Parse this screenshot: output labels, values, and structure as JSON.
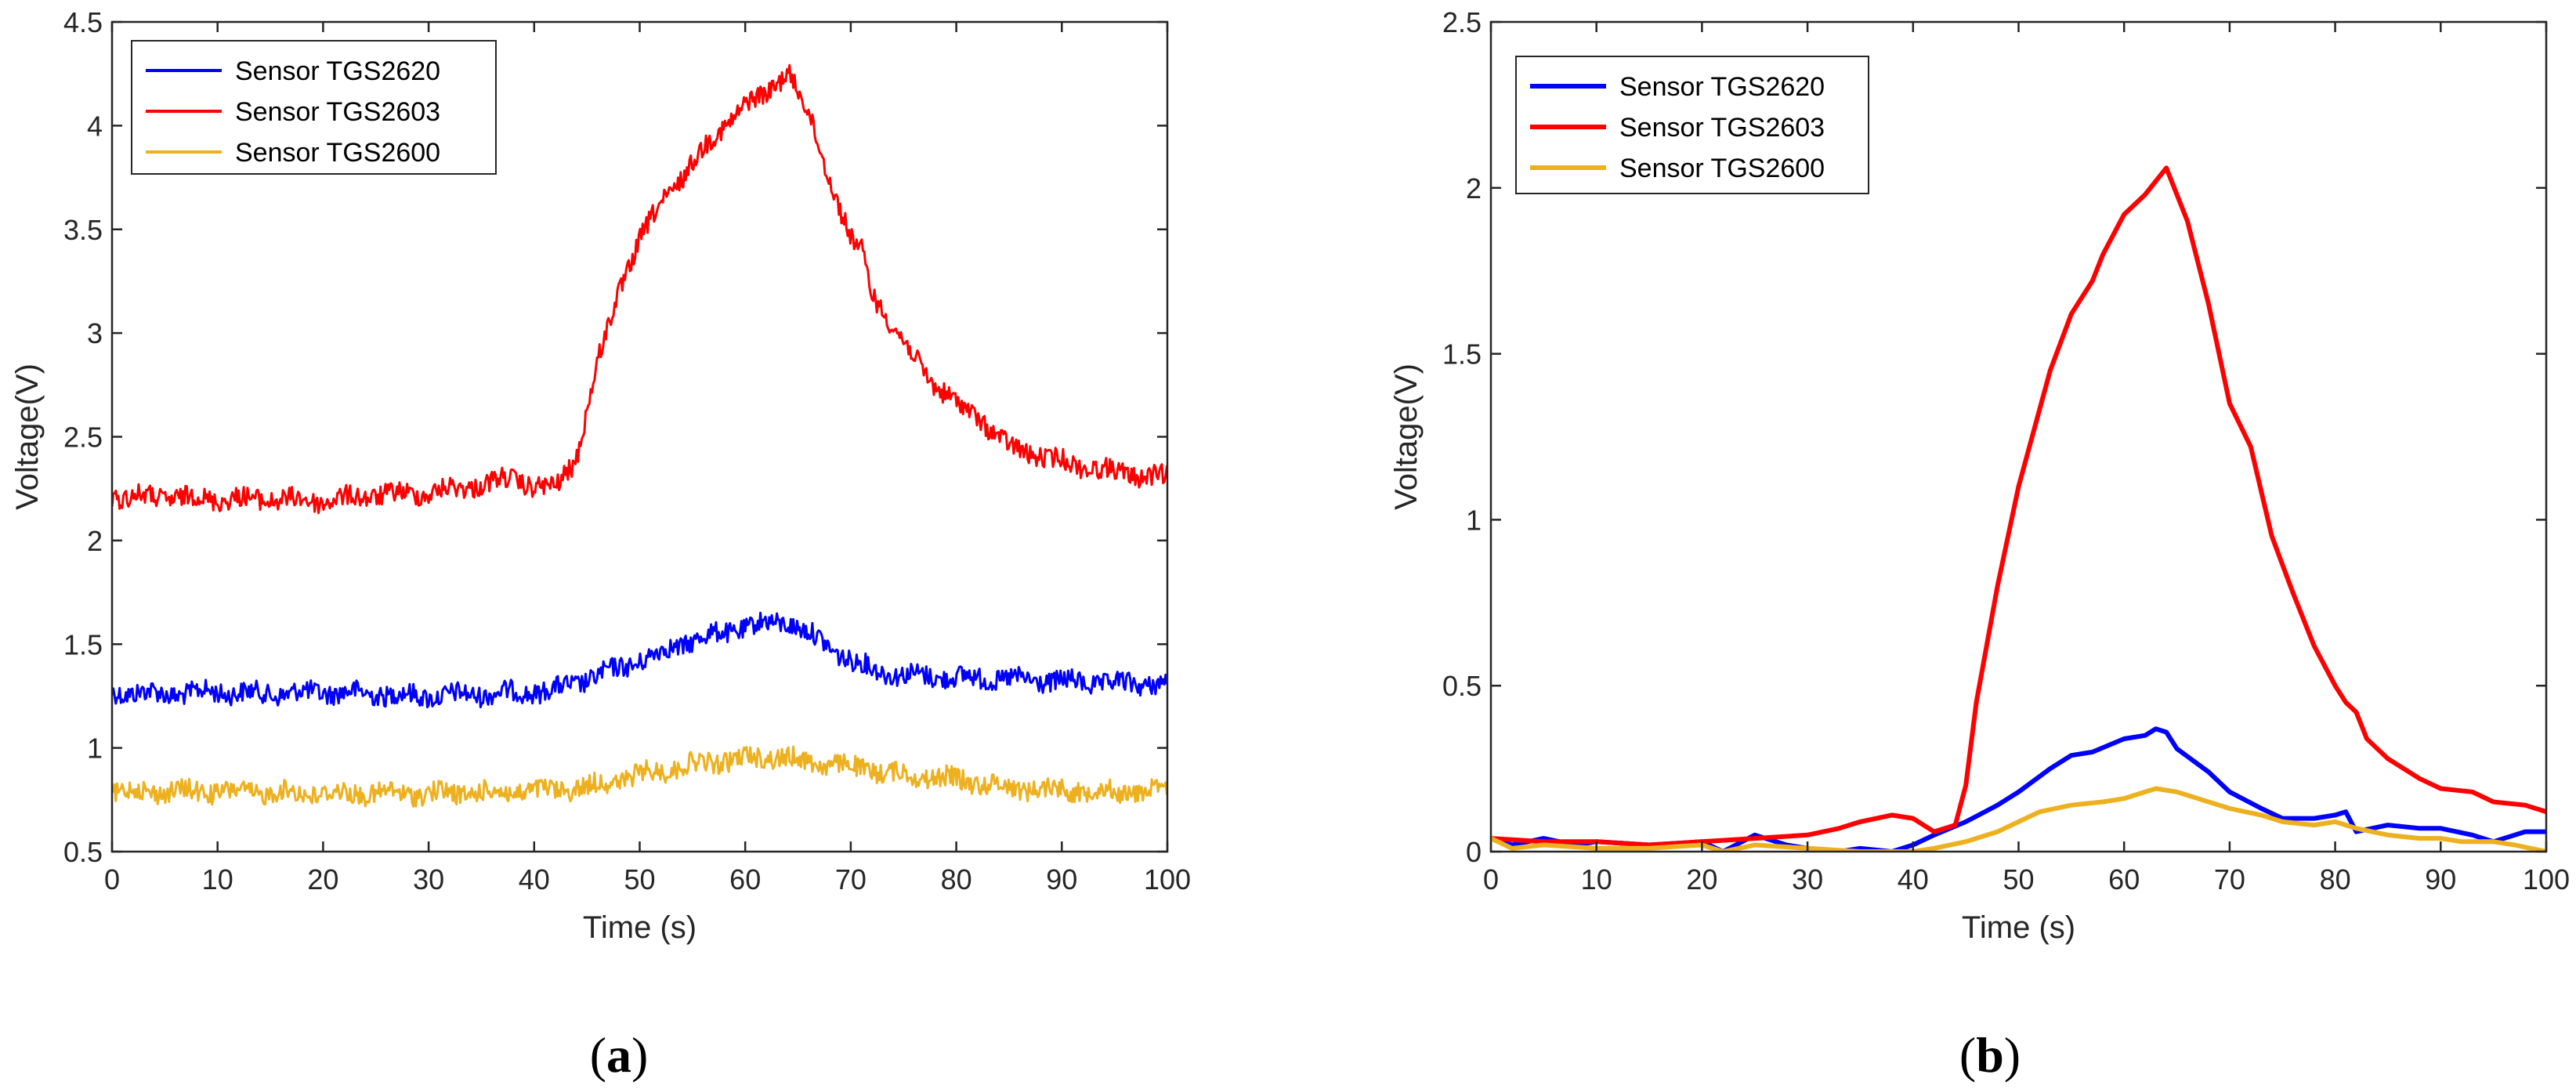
{
  "chart_data": [
    {
      "type": "line",
      "panel_label": "(a)",
      "panel_letter": "a",
      "xlabel": "Time (s)",
      "ylabel": "Voltage(V)",
      "xlim": [
        0,
        100
      ],
      "ylim": [
        0.5,
        4.5
      ],
      "xticks": [
        0,
        10,
        20,
        30,
        40,
        50,
        60,
        70,
        80,
        90,
        100
      ],
      "yticks": [
        0.5,
        1,
        1.5,
        2,
        2.5,
        3,
        3.5,
        4,
        4.5
      ],
      "ytick_labels": [
        "0.5",
        "1",
        "1.5",
        "2",
        "2.5",
        "3",
        "3.5",
        "4",
        "4.5"
      ],
      "legend_position": "top-left",
      "grid": false,
      "noisy": true,
      "series": [
        {
          "name": "Sensor TGS2620",
          "color": "#0000ff",
          "x": [
            0,
            5,
            10,
            15,
            20,
            25,
            30,
            35,
            40,
            42,
            45,
            50,
            55,
            60,
            62,
            64,
            67,
            70,
            72,
            75,
            80,
            85,
            90,
            95,
            100
          ],
          "y": [
            1.27,
            1.26,
            1.27,
            1.26,
            1.27,
            1.26,
            1.25,
            1.26,
            1.27,
            1.28,
            1.33,
            1.42,
            1.52,
            1.58,
            1.6,
            1.61,
            1.52,
            1.42,
            1.38,
            1.35,
            1.34,
            1.33,
            1.32,
            1.31,
            1.31
          ]
        },
        {
          "name": "Sensor TGS2603",
          "color": "#ff0000",
          "x": [
            0,
            5,
            10,
            15,
            20,
            25,
            30,
            35,
            38,
            40,
            42,
            44,
            46,
            48,
            50,
            52,
            55,
            58,
            60,
            62,
            64,
            66,
            68,
            70,
            71,
            72,
            75,
            78,
            80,
            82,
            85,
            90,
            95,
            100
          ],
          "y": [
            2.21,
            2.21,
            2.2,
            2.2,
            2.19,
            2.22,
            2.23,
            2.27,
            2.3,
            2.26,
            2.25,
            2.4,
            2.85,
            3.2,
            3.45,
            3.62,
            3.82,
            4.0,
            4.1,
            4.15,
            4.27,
            4.05,
            3.75,
            3.45,
            3.4,
            3.2,
            2.95,
            2.75,
            2.66,
            2.6,
            2.45,
            2.38,
            2.33,
            2.3
          ]
        },
        {
          "name": "Sensor TGS2600",
          "color": "#edb120",
          "x": [
            0,
            10,
            20,
            30,
            40,
            45,
            50,
            55,
            60,
            63,
            65,
            70,
            75,
            80,
            85,
            90,
            95,
            100
          ],
          "y": [
            0.79,
            0.79,
            0.78,
            0.78,
            0.79,
            0.81,
            0.87,
            0.92,
            0.95,
            0.96,
            0.94,
            0.91,
            0.87,
            0.85,
            0.81,
            0.8,
            0.79,
            0.79
          ]
        }
      ]
    },
    {
      "type": "line",
      "panel_label": "(b)",
      "panel_letter": "b",
      "xlabel": "Time (s)",
      "ylabel": "Voltage(V)",
      "xlim": [
        0,
        100
      ],
      "ylim": [
        0,
        2.5
      ],
      "xticks": [
        0,
        10,
        20,
        30,
        40,
        50,
        60,
        70,
        80,
        90,
        100
      ],
      "yticks": [
        0,
        0.5,
        1,
        1.5,
        2,
        2.5
      ],
      "ytick_labels": [
        "0",
        "0.5",
        "1",
        "1.5",
        "2",
        "2.5"
      ],
      "legend_position": "top-left",
      "grid": false,
      "noisy": false,
      "series": [
        {
          "name": "Sensor TGS2620",
          "color": "#0000ff",
          "x": [
            0,
            2,
            5,
            8,
            10,
            15,
            20,
            22,
            25,
            28,
            30,
            33,
            35,
            38,
            40,
            42,
            45,
            48,
            50,
            53,
            55,
            57,
            60,
            62,
            63,
            64,
            65,
            68,
            70,
            73,
            75,
            78,
            80,
            81,
            82,
            85,
            88,
            90,
            93,
            95,
            98,
            100
          ],
          "y": [
            0.04,
            0.02,
            0.04,
            0.02,
            0.03,
            0.02,
            0.03,
            0.0,
            0.05,
            0.02,
            0.01,
            0.0,
            0.01,
            0.0,
            0.02,
            0.05,
            0.09,
            0.14,
            0.18,
            0.25,
            0.29,
            0.3,
            0.34,
            0.35,
            0.37,
            0.36,
            0.31,
            0.24,
            0.18,
            0.13,
            0.1,
            0.1,
            0.11,
            0.12,
            0.06,
            0.08,
            0.07,
            0.07,
            0.05,
            0.03,
            0.06,
            0.06
          ]
        },
        {
          "name": "Sensor TGS2603",
          "color": "#ff0000",
          "x": [
            0,
            5,
            10,
            15,
            20,
            25,
            30,
            33,
            35,
            38,
            40,
            42,
            44,
            45,
            46,
            48,
            50,
            53,
            55,
            57,
            58,
            60,
            62,
            63,
            64,
            66,
            68,
            70,
            72,
            74,
            76,
            78,
            80,
            81,
            82,
            83,
            85,
            88,
            90,
            93,
            95,
            98,
            100
          ],
          "y": [
            0.04,
            0.03,
            0.03,
            0.02,
            0.03,
            0.04,
            0.05,
            0.07,
            0.09,
            0.11,
            0.1,
            0.06,
            0.08,
            0.2,
            0.45,
            0.8,
            1.1,
            1.45,
            1.62,
            1.72,
            1.8,
            1.92,
            1.98,
            2.02,
            2.06,
            1.9,
            1.65,
            1.35,
            1.22,
            0.95,
            0.78,
            0.62,
            0.5,
            0.45,
            0.42,
            0.34,
            0.28,
            0.22,
            0.19,
            0.18,
            0.15,
            0.14,
            0.12
          ]
        },
        {
          "name": "Sensor TGS2600",
          "color": "#edb120",
          "x": [
            0,
            2,
            5,
            10,
            15,
            20,
            22,
            25,
            30,
            35,
            40,
            42,
            45,
            48,
            50,
            52,
            55,
            58,
            60,
            62,
            63,
            65,
            68,
            70,
            73,
            75,
            78,
            80,
            82,
            85,
            88,
            90,
            92,
            95,
            97,
            100
          ],
          "y": [
            0.04,
            0.01,
            0.02,
            0.01,
            0.01,
            0.02,
            0.0,
            0.02,
            0.01,
            0.0,
            0.0,
            0.01,
            0.03,
            0.06,
            0.09,
            0.12,
            0.14,
            0.15,
            0.16,
            0.18,
            0.19,
            0.18,
            0.15,
            0.13,
            0.11,
            0.09,
            0.08,
            0.09,
            0.07,
            0.05,
            0.04,
            0.04,
            0.03,
            0.03,
            0.02,
            0.0
          ]
        }
      ]
    }
  ]
}
